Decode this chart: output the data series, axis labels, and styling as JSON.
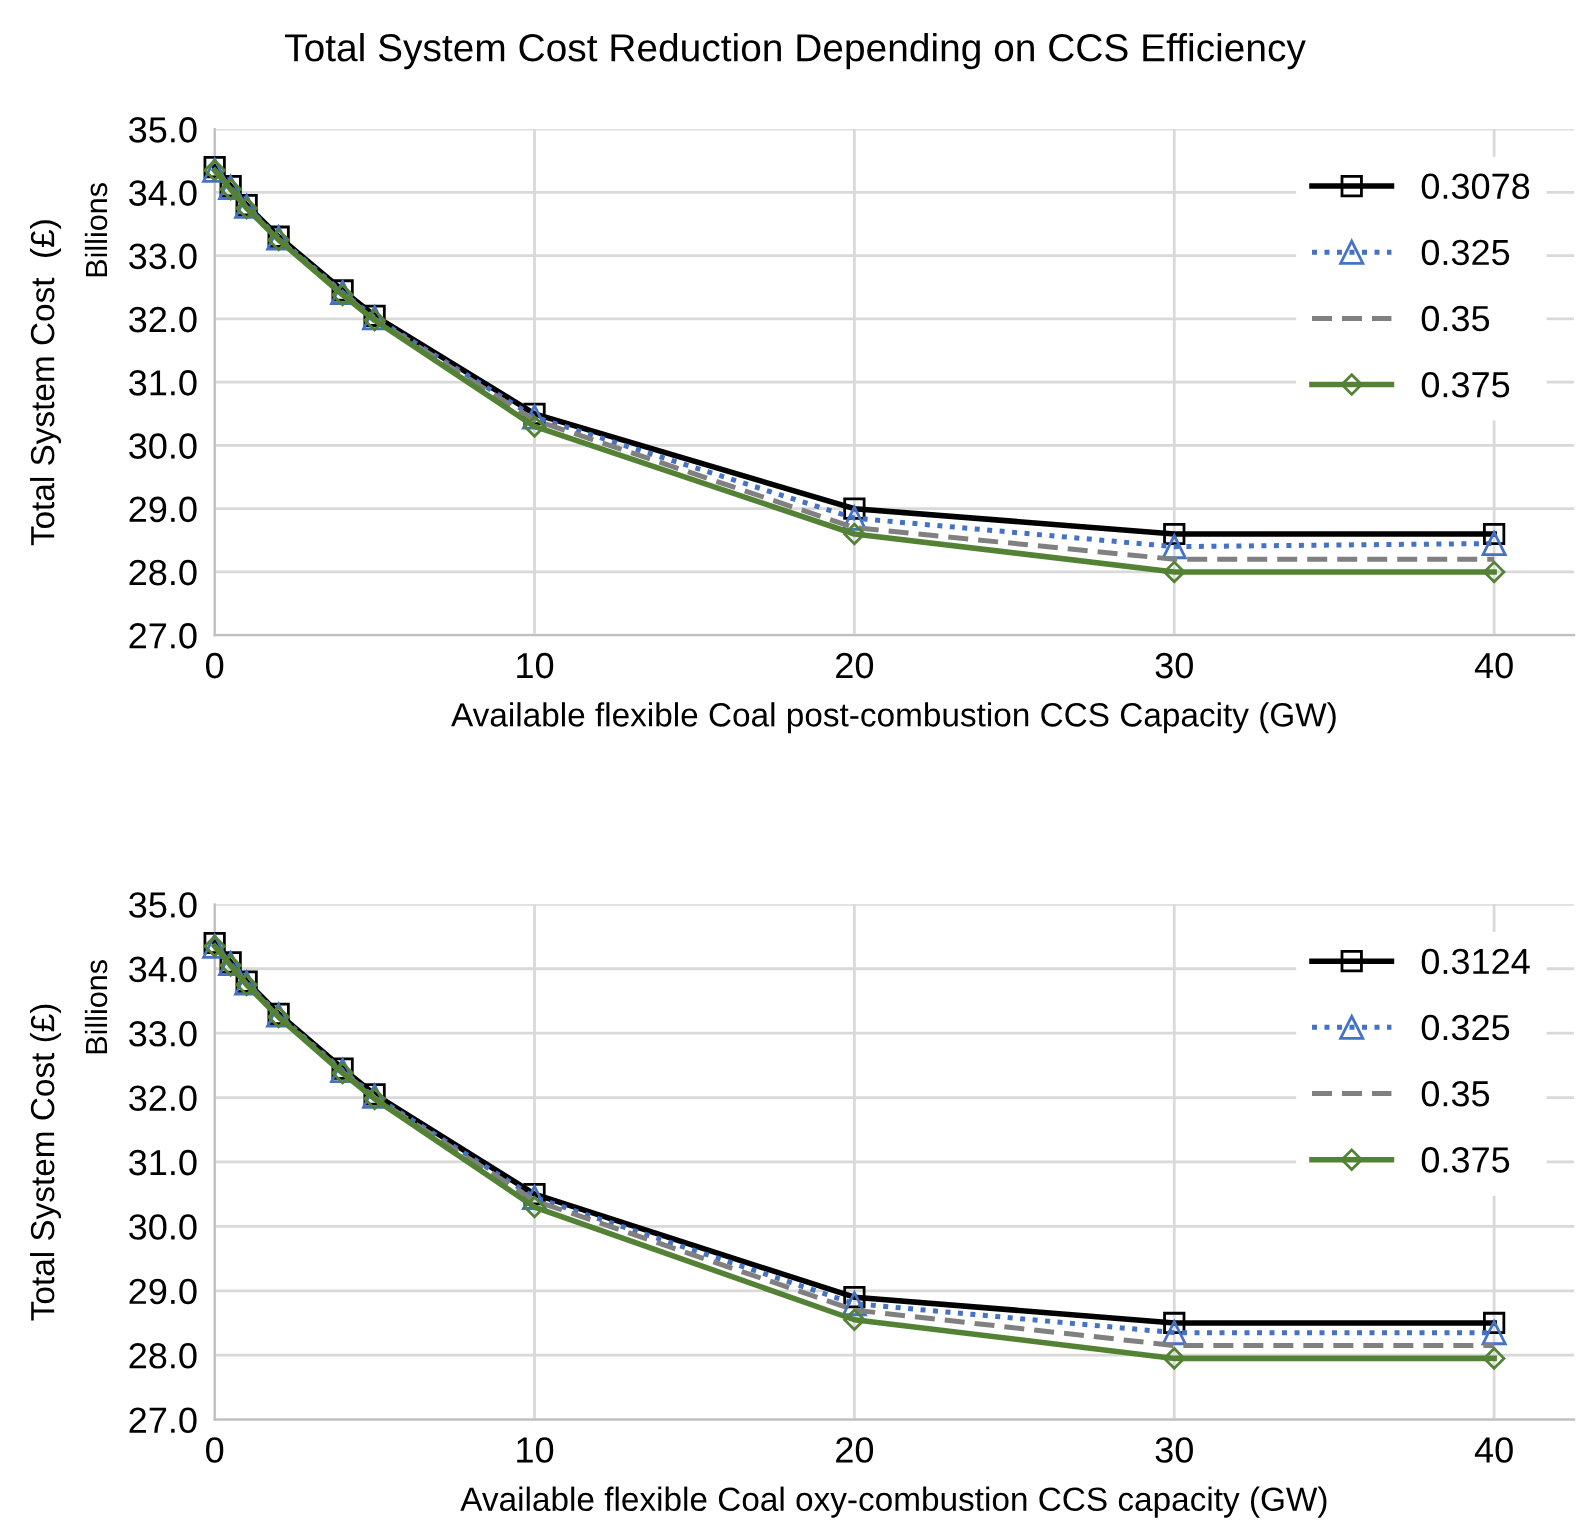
{
  "chart_data": [
    {
      "type": "line",
      "title": "Total System Cost Reduction Depending on CCS Efficiency",
      "xlabel": "Available flexible Coal post-combustion CCS Capacity (GW)",
      "ylabel": "Total System Cost  (£)",
      "annotations": [
        "Billions"
      ],
      "x": [
        0,
        0.5,
        1,
        2,
        4,
        5,
        10,
        20,
        30,
        40
      ],
      "xlim": [
        0,
        42.5
      ],
      "xticks": [
        0,
        10,
        20,
        30,
        40
      ],
      "ylim": [
        27,
        35
      ],
      "yticks": [
        {
          "value": 27,
          "label": "27.0"
        },
        {
          "value": 28,
          "label": "28.0"
        },
        {
          "value": 29,
          "label": "29.0"
        },
        {
          "value": 30,
          "label": "30.0"
        },
        {
          "value": 31,
          "label": "31.0"
        },
        {
          "value": 32,
          "label": "32.0"
        },
        {
          "value": 33,
          "label": "33.0"
        },
        {
          "value": 34,
          "label": "34.0"
        },
        {
          "value": 35,
          "label": "35.0"
        }
      ],
      "grid": true,
      "legend": "top right",
      "series": [
        {
          "name": "0.3078",
          "color": "#000000",
          "marker": "square",
          "line_style": "solid",
          "values": [
            34.4,
            34.1,
            33.8,
            33.3,
            32.45,
            32.05,
            30.5,
            29.0,
            28.6,
            28.6
          ]
        },
        {
          "name": "0.325",
          "color": "#4472c4",
          "marker": "triangle",
          "line_style": "dotted",
          "values": [
            34.35,
            34.08,
            33.78,
            33.28,
            32.42,
            32.02,
            30.45,
            28.85,
            28.4,
            28.45
          ]
        },
        {
          "name": "0.35",
          "color": "#808080",
          "marker": "none",
          "line_style": "dashed",
          "values": [
            34.35,
            34.06,
            33.76,
            33.26,
            32.4,
            32.0,
            30.4,
            28.7,
            28.2,
            28.2
          ]
        },
        {
          "name": "0.375",
          "color": "#548235",
          "marker": "diamond",
          "line_style": "solid",
          "values": [
            34.35,
            34.05,
            33.75,
            33.25,
            32.38,
            31.98,
            30.3,
            28.6,
            28.0,
            28.0
          ]
        }
      ]
    },
    {
      "type": "line",
      "xlabel": "Available flexible Coal oxy-combustion CCS capacity (GW)",
      "ylabel": "Total System Cost (£)",
      "annotations": [
        "Billions"
      ],
      "x": [
        0,
        0.5,
        1,
        2,
        4,
        5,
        10,
        20,
        30,
        40
      ],
      "xlim": [
        0,
        42.5
      ],
      "xticks": [
        0,
        10,
        20,
        30,
        40
      ],
      "ylim": [
        27,
        35
      ],
      "yticks": [
        {
          "value": 27,
          "label": "27.0"
        },
        {
          "value": 28,
          "label": "28.0"
        },
        {
          "value": 29,
          "label": "29.0"
        },
        {
          "value": 30,
          "label": "30.0"
        },
        {
          "value": 31,
          "label": "31.0"
        },
        {
          "value": 32,
          "label": "32.0"
        },
        {
          "value": 33,
          "label": "33.0"
        },
        {
          "value": 34,
          "label": "34.0"
        },
        {
          "value": 35,
          "label": "35.0"
        }
      ],
      "grid": true,
      "legend": "top right",
      "series": [
        {
          "name": "0.3124",
          "color": "#000000",
          "marker": "square",
          "line_style": "solid",
          "values": [
            34.4,
            34.1,
            33.8,
            33.3,
            32.45,
            32.05,
            30.5,
            28.9,
            28.5,
            28.5
          ]
        },
        {
          "name": "0.325",
          "color": "#4472c4",
          "marker": "triangle",
          "line_style": "dotted",
          "values": [
            34.35,
            34.08,
            33.78,
            33.28,
            32.42,
            32.02,
            30.45,
            28.8,
            28.35,
            28.35
          ]
        },
        {
          "name": "0.35",
          "color": "#808080",
          "marker": "none",
          "line_style": "dashed",
          "values": [
            34.35,
            34.06,
            33.76,
            33.26,
            32.4,
            32.0,
            30.4,
            28.7,
            28.15,
            28.15
          ]
        },
        {
          "name": "0.375",
          "color": "#548235",
          "marker": "diamond",
          "line_style": "solid",
          "values": [
            34.35,
            34.05,
            33.75,
            33.25,
            32.38,
            31.98,
            30.3,
            28.55,
            27.95,
            27.95
          ]
        }
      ]
    }
  ]
}
